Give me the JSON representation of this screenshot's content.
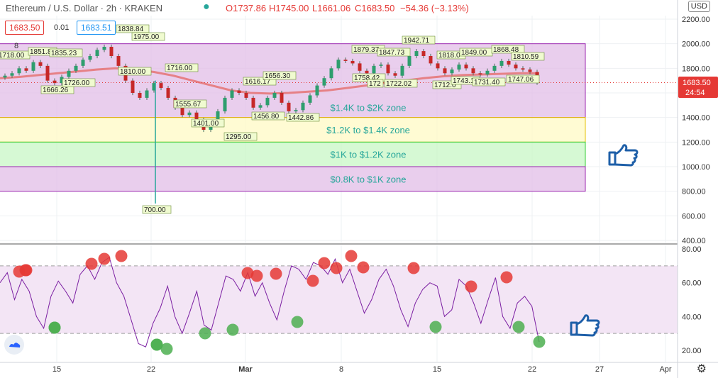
{
  "header": {
    "symbol": "Ethereum / U.S. Dollar · 2h · KRAKEN",
    "open": "O1737.86",
    "high": "H1745.00",
    "low": "L1661.06",
    "close": "C1683.50",
    "change": "−54.36 (−3.13%)",
    "sell_price": "1683.50",
    "spread": "0.01",
    "buy_price": "1683.51",
    "indicator_count": "8"
  },
  "currency_label": "USD",
  "last_price_badge": {
    "price": "1683.50",
    "countdown": "24:54"
  },
  "colors": {
    "zone_purple": "#e1bee7",
    "zone_yellow": "#fff9c4",
    "zone_green": "#c8f7c5",
    "zone_text": "#26a69a",
    "moving_average": "#e57373",
    "rsi_line": "#7b1fa2",
    "rsi_high_marker": "#e53935",
    "rsi_low_marker": "#4caf50",
    "thumb_icon": "#1e5fa8",
    "down_red": "#e53935",
    "up_blue": "#2196f3"
  },
  "chart_data": [
    {
      "type": "candlestick",
      "title": "Ethereum / U.S. Dollar · 2h · KRAKEN",
      "y_ticks": [
        "2200.00",
        "2000.00",
        "1800.00",
        "1600.00",
        "1400.00",
        "1200.00",
        "1000.00",
        "800.00",
        "600.00",
        "400.00"
      ],
      "ylim": [
        400,
        2200
      ],
      "x_ticks": [
        "15",
        "22",
        "Mar",
        "8",
        "15",
        "22",
        "27",
        "Apr"
      ],
      "zones": [
        {
          "label": "$1.4K to $2K zone",
          "low": 1400,
          "high": 2000,
          "color": "#e1bee7"
        },
        {
          "label": "$1.2K to $1.4K zone",
          "low": 1200,
          "high": 1400,
          "color": "#fff9c4"
        },
        {
          "label": "$1K to $1.2K zone",
          "low": 1000,
          "high": 1200,
          "color": "#c8f7c5"
        },
        {
          "label": "$0.8K to $1K zone",
          "low": 800,
          "high": 1000,
          "color": "#e1bee7"
        }
      ],
      "price_labels": [
        "1718.00",
        "1851.8",
        "1835.23",
        "1666.26",
        "1726.00",
        "1838.84",
        "1975.00",
        "1810.00",
        "700.00",
        "1716.00",
        "1555.67",
        "1401.00",
        "1295.00",
        "1616.17",
        "1656.30",
        "1456.80",
        "1442.86",
        "1879.37",
        "1847.73",
        "1758.42",
        "172",
        "1722.02",
        "1942.71",
        "1818.0",
        "1849.00",
        "1712.0",
        "1743.1",
        "1731.40",
        "1868.48",
        "1810.59",
        "1747.06"
      ],
      "close_series": [
        1740,
        1760,
        1800,
        1780,
        1850,
        1820,
        1700,
        1680,
        1730,
        1780,
        1820,
        1870,
        1900,
        1950,
        1975,
        1900,
        1820,
        1700,
        1600,
        1560,
        1620,
        1680,
        1640,
        1560,
        1480,
        1420,
        1440,
        1380,
        1300,
        1360,
        1450,
        1560,
        1620,
        1600,
        1560,
        1480,
        1500,
        1560,
        1600,
        1520,
        1450,
        1460,
        1520,
        1580,
        1660,
        1720,
        1800,
        1870,
        1860,
        1840,
        1780,
        1760,
        1820,
        1830,
        1760,
        1740,
        1820,
        1900,
        1940,
        1900,
        1840,
        1800,
        1760,
        1790,
        1830,
        1800,
        1760,
        1750,
        1780,
        1820,
        1860,
        1830,
        1800,
        1790,
        1770,
        1683.5
      ],
      "moving_average": [
        1720,
        1730,
        1745,
        1760,
        1775,
        1790,
        1800,
        1790,
        1770,
        1740,
        1700,
        1660,
        1620,
        1600,
        1595,
        1600,
        1610,
        1620,
        1640,
        1660,
        1680,
        1700,
        1720,
        1735,
        1745,
        1750,
        1755,
        1760,
        1760
      ]
    },
    {
      "type": "line",
      "series": [
        {
          "values": [
            60,
            66,
            50,
            62,
            55,
            40,
            33,
            52,
            61,
            55,
            48,
            65,
            70,
            62,
            72,
            75,
            60,
            52,
            38,
            24,
            22,
            36,
            45,
            58,
            40,
            30,
            42,
            55,
            35,
            32,
            48,
            64,
            62,
            55,
            66,
            52,
            60,
            48,
            38,
            55,
            70,
            68,
            62,
            72,
            70,
            65,
            74,
            60,
            68,
            55,
            42,
            50,
            62,
            68,
            58,
            44,
            34,
            48,
            56,
            60,
            58,
            40,
            44,
            62,
            58,
            48,
            36,
            50,
            63,
            40,
            33,
            48,
            52,
            46,
            25
          ]
        }
      ],
      "y_ticks": [
        "80.00",
        "60.00",
        "40.00",
        "20.00"
      ],
      "ylim": [
        15,
        82
      ],
      "bands": [
        30,
        70
      ],
      "overbought_markers": 17,
      "oversold_markers": 11
    }
  ]
}
